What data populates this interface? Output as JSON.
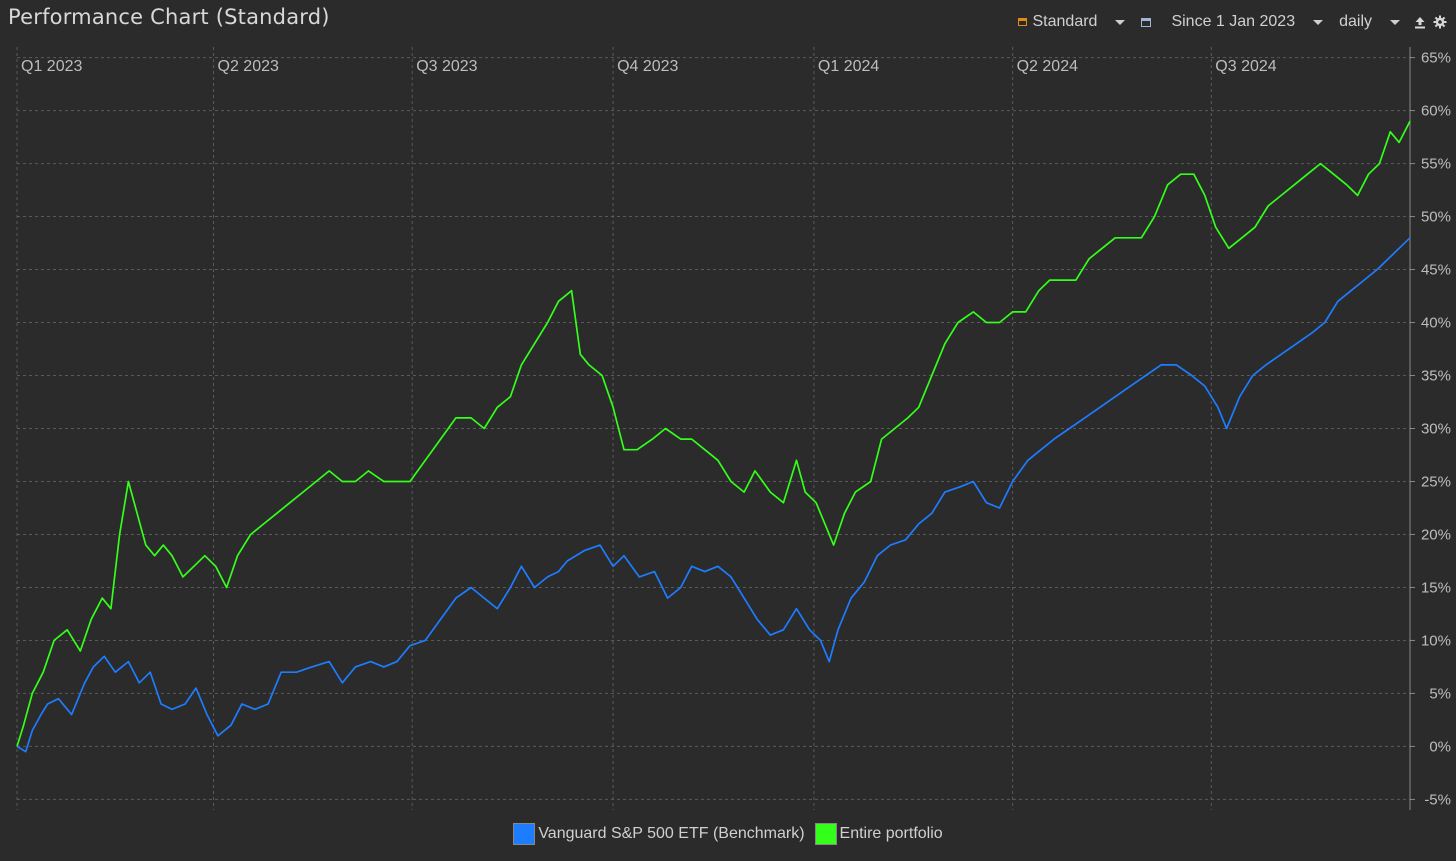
{
  "header": {
    "title": "Performance Chart (Standard)"
  },
  "toolbar": {
    "view_label": "Standard",
    "period_label": "Since 1 Jan 2023",
    "interval_label": "daily"
  },
  "colors": {
    "background": "#2b2b2b",
    "grid": "#5a5a5a",
    "benchmark": "#1e7cff",
    "portfolio": "#33ff1a",
    "axis_text": "#bdbdbd",
    "view_icon": "#e08a1e"
  },
  "icons": {
    "view": "chart-view-icon",
    "period": "calendar-icon",
    "export": "export-icon",
    "settings": "gear-icon"
  },
  "chart_data": {
    "type": "line",
    "title": "Performance Chart (Standard)",
    "x_range": [
      "2023-01-01",
      "2024-09-30"
    ],
    "quarter_labels": [
      "Q1 2023",
      "Q2 2023",
      "Q3 2023",
      "Q4 2023",
      "Q1 2024",
      "Q2 2024",
      "Q3 2024"
    ],
    "quarter_starts": [
      "2023-01-01",
      "2023-04-01",
      "2023-07-01",
      "2023-10-01",
      "2024-01-01",
      "2024-04-01",
      "2024-07-01"
    ],
    "ylim": [
      -6,
      66
    ],
    "y_ticks": [
      -5,
      0,
      5,
      10,
      15,
      20,
      25,
      30,
      35,
      40,
      45,
      50,
      55,
      60,
      65
    ],
    "y_unit": "%",
    "grid": true,
    "legend_position": "bottom-center",
    "series": [
      {
        "name": "Vanguard S&P 500 ETF (Benchmark)",
        "color": "#1e7cff",
        "points": [
          [
            "2023-01-01",
            0
          ],
          [
            "2023-01-05",
            -0.5
          ],
          [
            "2023-01-08",
            1.5
          ],
          [
            "2023-01-12",
            3
          ],
          [
            "2023-01-15",
            4
          ],
          [
            "2023-01-20",
            4.5
          ],
          [
            "2023-01-26",
            3
          ],
          [
            "2023-02-01",
            6
          ],
          [
            "2023-02-05",
            7.5
          ],
          [
            "2023-02-10",
            8.5
          ],
          [
            "2023-02-15",
            7
          ],
          [
            "2023-02-21",
            8
          ],
          [
            "2023-02-26",
            6
          ],
          [
            "2023-03-03",
            7
          ],
          [
            "2023-03-08",
            4
          ],
          [
            "2023-03-13",
            3.5
          ],
          [
            "2023-03-19",
            4
          ],
          [
            "2023-03-24",
            5.5
          ],
          [
            "2023-03-29",
            3
          ],
          [
            "2023-04-03",
            1
          ],
          [
            "2023-04-09",
            2
          ],
          [
            "2023-04-14",
            4
          ],
          [
            "2023-04-20",
            3.5
          ],
          [
            "2023-04-26",
            4
          ],
          [
            "2023-05-02",
            7
          ],
          [
            "2023-05-09",
            7
          ],
          [
            "2023-05-16",
            7.5
          ],
          [
            "2023-05-24",
            8
          ],
          [
            "2023-05-30",
            6
          ],
          [
            "2023-06-05",
            7.5
          ],
          [
            "2023-06-12",
            8
          ],
          [
            "2023-06-18",
            7.5
          ],
          [
            "2023-06-24",
            8
          ],
          [
            "2023-06-30",
            9.5
          ],
          [
            "2023-07-07",
            10
          ],
          [
            "2023-07-14",
            12
          ],
          [
            "2023-07-21",
            14
          ],
          [
            "2023-07-28",
            15
          ],
          [
            "2023-08-03",
            14
          ],
          [
            "2023-08-09",
            13
          ],
          [
            "2023-08-15",
            15
          ],
          [
            "2023-08-20",
            17
          ],
          [
            "2023-08-26",
            15
          ],
          [
            "2023-09-01",
            16
          ],
          [
            "2023-09-06",
            16.5
          ],
          [
            "2023-09-10",
            17.5
          ],
          [
            "2023-09-18",
            18.5
          ],
          [
            "2023-09-25",
            19
          ],
          [
            "2023-10-01",
            17
          ],
          [
            "2023-10-06",
            18
          ],
          [
            "2023-10-13",
            16
          ],
          [
            "2023-10-20",
            16.5
          ],
          [
            "2023-10-26",
            14
          ],
          [
            "2023-11-01",
            15
          ],
          [
            "2023-11-06",
            17
          ],
          [
            "2023-11-12",
            16.5
          ],
          [
            "2023-11-18",
            17
          ],
          [
            "2023-11-24",
            16
          ],
          [
            "2023-11-30",
            14
          ],
          [
            "2023-12-06",
            12
          ],
          [
            "2023-12-12",
            10.5
          ],
          [
            "2023-12-18",
            11
          ],
          [
            "2023-12-24",
            13
          ],
          [
            "2023-12-30",
            11
          ],
          [
            "2024-01-04",
            10
          ],
          [
            "2024-01-08",
            8
          ],
          [
            "2024-01-12",
            11
          ],
          [
            "2024-01-18",
            14
          ],
          [
            "2024-01-24",
            15.5
          ],
          [
            "2024-01-30",
            18
          ],
          [
            "2024-02-05",
            19
          ],
          [
            "2024-02-12",
            19.5
          ],
          [
            "2024-02-18",
            21
          ],
          [
            "2024-02-24",
            22
          ],
          [
            "2024-03-01",
            24
          ],
          [
            "2024-03-08",
            24.5
          ],
          [
            "2024-03-14",
            25
          ],
          [
            "2024-03-20",
            23
          ],
          [
            "2024-03-26",
            22.5
          ],
          [
            "2024-04-01",
            25
          ],
          [
            "2024-04-08",
            27
          ],
          [
            "2024-04-14",
            28
          ],
          [
            "2024-04-20",
            29
          ],
          [
            "2024-04-27",
            30
          ],
          [
            "2024-05-04",
            31
          ],
          [
            "2024-05-11",
            32
          ],
          [
            "2024-05-18",
            33
          ],
          [
            "2024-05-25",
            34
          ],
          [
            "2024-06-01",
            35
          ],
          [
            "2024-06-08",
            36
          ],
          [
            "2024-06-15",
            36
          ],
          [
            "2024-06-22",
            35
          ],
          [
            "2024-06-28",
            34
          ],
          [
            "2024-07-04",
            32
          ],
          [
            "2024-07-08",
            30
          ],
          [
            "2024-07-14",
            33
          ],
          [
            "2024-07-20",
            35
          ],
          [
            "2024-07-26",
            36
          ],
          [
            "2024-08-02",
            37
          ],
          [
            "2024-08-09",
            38
          ],
          [
            "2024-08-16",
            39
          ],
          [
            "2024-08-22",
            40
          ],
          [
            "2024-08-28",
            42
          ],
          [
            "2024-09-03",
            43
          ],
          [
            "2024-09-09",
            44
          ],
          [
            "2024-09-15",
            45
          ],
          [
            "2024-09-20",
            46
          ],
          [
            "2024-09-25",
            47
          ],
          [
            "2024-09-30",
            48
          ]
        ]
      },
      {
        "name": "Entire portfolio",
        "color": "#33ff1a",
        "points": [
          [
            "2023-01-01",
            0
          ],
          [
            "2023-01-04",
            2
          ],
          [
            "2023-01-08",
            5
          ],
          [
            "2023-01-13",
            7
          ],
          [
            "2023-01-18",
            10
          ],
          [
            "2023-01-24",
            11
          ],
          [
            "2023-01-30",
            9
          ],
          [
            "2023-02-04",
            12
          ],
          [
            "2023-02-09",
            14
          ],
          [
            "2023-02-13",
            13
          ],
          [
            "2023-02-17",
            20
          ],
          [
            "2023-02-21",
            25
          ],
          [
            "2023-02-25",
            22
          ],
          [
            "2023-03-01",
            19
          ],
          [
            "2023-03-05",
            18
          ],
          [
            "2023-03-09",
            19
          ],
          [
            "2023-03-13",
            18
          ],
          [
            "2023-03-18",
            16
          ],
          [
            "2023-03-23",
            17
          ],
          [
            "2023-03-28",
            18
          ],
          [
            "2023-04-02",
            17
          ],
          [
            "2023-04-07",
            15
          ],
          [
            "2023-04-12",
            18
          ],
          [
            "2023-04-18",
            20
          ],
          [
            "2023-04-24",
            21
          ],
          [
            "2023-04-30",
            22
          ],
          [
            "2023-05-06",
            23
          ],
          [
            "2023-05-12",
            24
          ],
          [
            "2023-05-18",
            25
          ],
          [
            "2023-05-24",
            26
          ],
          [
            "2023-05-30",
            25
          ],
          [
            "2023-06-05",
            25
          ],
          [
            "2023-06-11",
            26
          ],
          [
            "2023-06-18",
            25
          ],
          [
            "2023-06-24",
            25
          ],
          [
            "2023-06-30",
            25
          ],
          [
            "2023-07-07",
            27
          ],
          [
            "2023-07-14",
            29
          ],
          [
            "2023-07-21",
            31
          ],
          [
            "2023-07-28",
            31
          ],
          [
            "2023-08-03",
            30
          ],
          [
            "2023-08-09",
            32
          ],
          [
            "2023-08-15",
            33
          ],
          [
            "2023-08-20",
            36
          ],
          [
            "2023-08-26",
            38
          ],
          [
            "2023-09-01",
            40
          ],
          [
            "2023-09-06",
            42
          ],
          [
            "2023-09-12",
            43
          ],
          [
            "2023-09-16",
            37
          ],
          [
            "2023-09-20",
            36
          ],
          [
            "2023-09-26",
            35
          ],
          [
            "2023-10-01",
            32
          ],
          [
            "2023-10-06",
            28
          ],
          [
            "2023-10-12",
            28
          ],
          [
            "2023-10-19",
            29
          ],
          [
            "2023-10-25",
            30
          ],
          [
            "2023-11-01",
            29
          ],
          [
            "2023-11-06",
            29
          ],
          [
            "2023-11-12",
            28
          ],
          [
            "2023-11-18",
            27
          ],
          [
            "2023-11-24",
            25
          ],
          [
            "2023-11-30",
            24
          ],
          [
            "2023-12-05",
            26
          ],
          [
            "2023-12-12",
            24
          ],
          [
            "2023-12-18",
            23
          ],
          [
            "2023-12-24",
            27
          ],
          [
            "2023-12-28",
            24
          ],
          [
            "2024-01-02",
            23
          ],
          [
            "2024-01-06",
            21
          ],
          [
            "2024-01-10",
            19
          ],
          [
            "2024-01-15",
            22
          ],
          [
            "2024-01-20",
            24
          ],
          [
            "2024-01-27",
            25
          ],
          [
            "2024-02-01",
            29
          ],
          [
            "2024-02-07",
            30
          ],
          [
            "2024-02-13",
            31
          ],
          [
            "2024-02-18",
            32
          ],
          [
            "2024-02-24",
            35
          ],
          [
            "2024-03-01",
            38
          ],
          [
            "2024-03-07",
            40
          ],
          [
            "2024-03-14",
            41
          ],
          [
            "2024-03-20",
            40
          ],
          [
            "2024-03-26",
            40
          ],
          [
            "2024-04-01",
            41
          ],
          [
            "2024-04-07",
            41
          ],
          [
            "2024-04-13",
            43
          ],
          [
            "2024-04-18",
            44
          ],
          [
            "2024-04-24",
            44
          ],
          [
            "2024-04-30",
            44
          ],
          [
            "2024-05-06",
            46
          ],
          [
            "2024-05-12",
            47
          ],
          [
            "2024-05-18",
            48
          ],
          [
            "2024-05-24",
            48
          ],
          [
            "2024-05-30",
            48
          ],
          [
            "2024-06-05",
            50
          ],
          [
            "2024-06-11",
            53
          ],
          [
            "2024-06-17",
            54
          ],
          [
            "2024-06-23",
            54
          ],
          [
            "2024-06-28",
            52
          ],
          [
            "2024-07-03",
            49
          ],
          [
            "2024-07-09",
            47
          ],
          [
            "2024-07-15",
            48
          ],
          [
            "2024-07-21",
            49
          ],
          [
            "2024-07-27",
            51
          ],
          [
            "2024-08-02",
            52
          ],
          [
            "2024-08-08",
            53
          ],
          [
            "2024-08-14",
            54
          ],
          [
            "2024-08-20",
            55
          ],
          [
            "2024-08-26",
            54
          ],
          [
            "2024-09-01",
            53
          ],
          [
            "2024-09-06",
            52
          ],
          [
            "2024-09-11",
            54
          ],
          [
            "2024-09-16",
            55
          ],
          [
            "2024-09-21",
            58
          ],
          [
            "2024-09-25",
            57
          ],
          [
            "2024-09-30",
            59
          ]
        ]
      }
    ]
  }
}
